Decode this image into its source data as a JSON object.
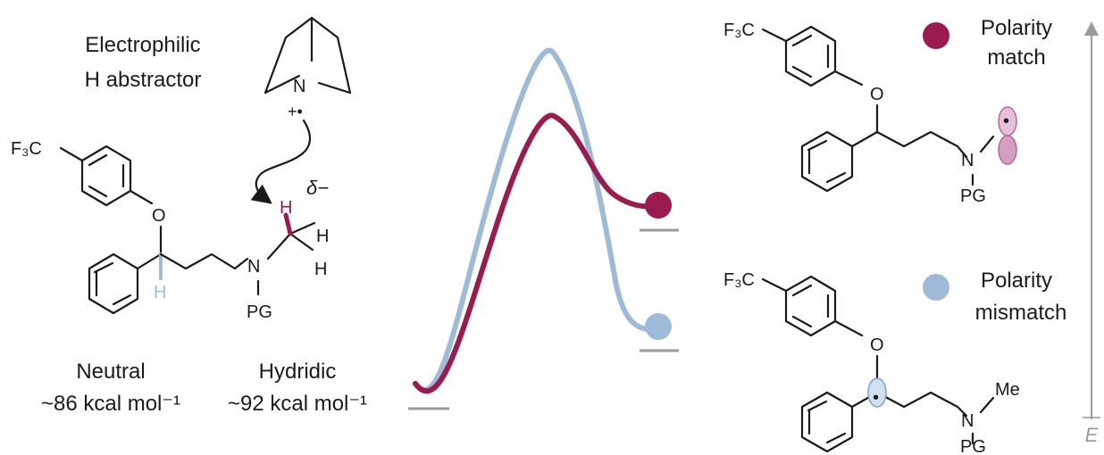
{
  "left": {
    "abstractor_label_line1": "Electrophilic",
    "abstractor_label_line2": "H abstractor",
    "radical_cation_mark": "+•",
    "partial_charge": "δ−",
    "neutral_label": "Neutral",
    "neutral_energy": "~86 kcal mol⁻¹",
    "hydridic_label": "Hydridic",
    "hydridic_energy": "~92 kcal mol⁻¹"
  },
  "atoms": {
    "cf3": "F₃C",
    "oxygen": "O",
    "nitrogen": "N",
    "hydrogen": "H",
    "protecting_group": "PG",
    "methyl": "Me",
    "radical_dot": "•"
  },
  "right": {
    "match_label_line1": "Polarity",
    "match_label_line2": "match",
    "mismatch_label_line1": "Polarity",
    "mismatch_label_line2": "mismatch",
    "energy_axis_label": "E"
  },
  "colors": {
    "match": "#9b1b4f",
    "mismatch": "#9dbad8",
    "orbital_pink": "#dca3c9",
    "orbital_blue": "#a7c3e2",
    "baseline_gray": "#9a9a9a",
    "text": "#1a1a1a"
  }
}
